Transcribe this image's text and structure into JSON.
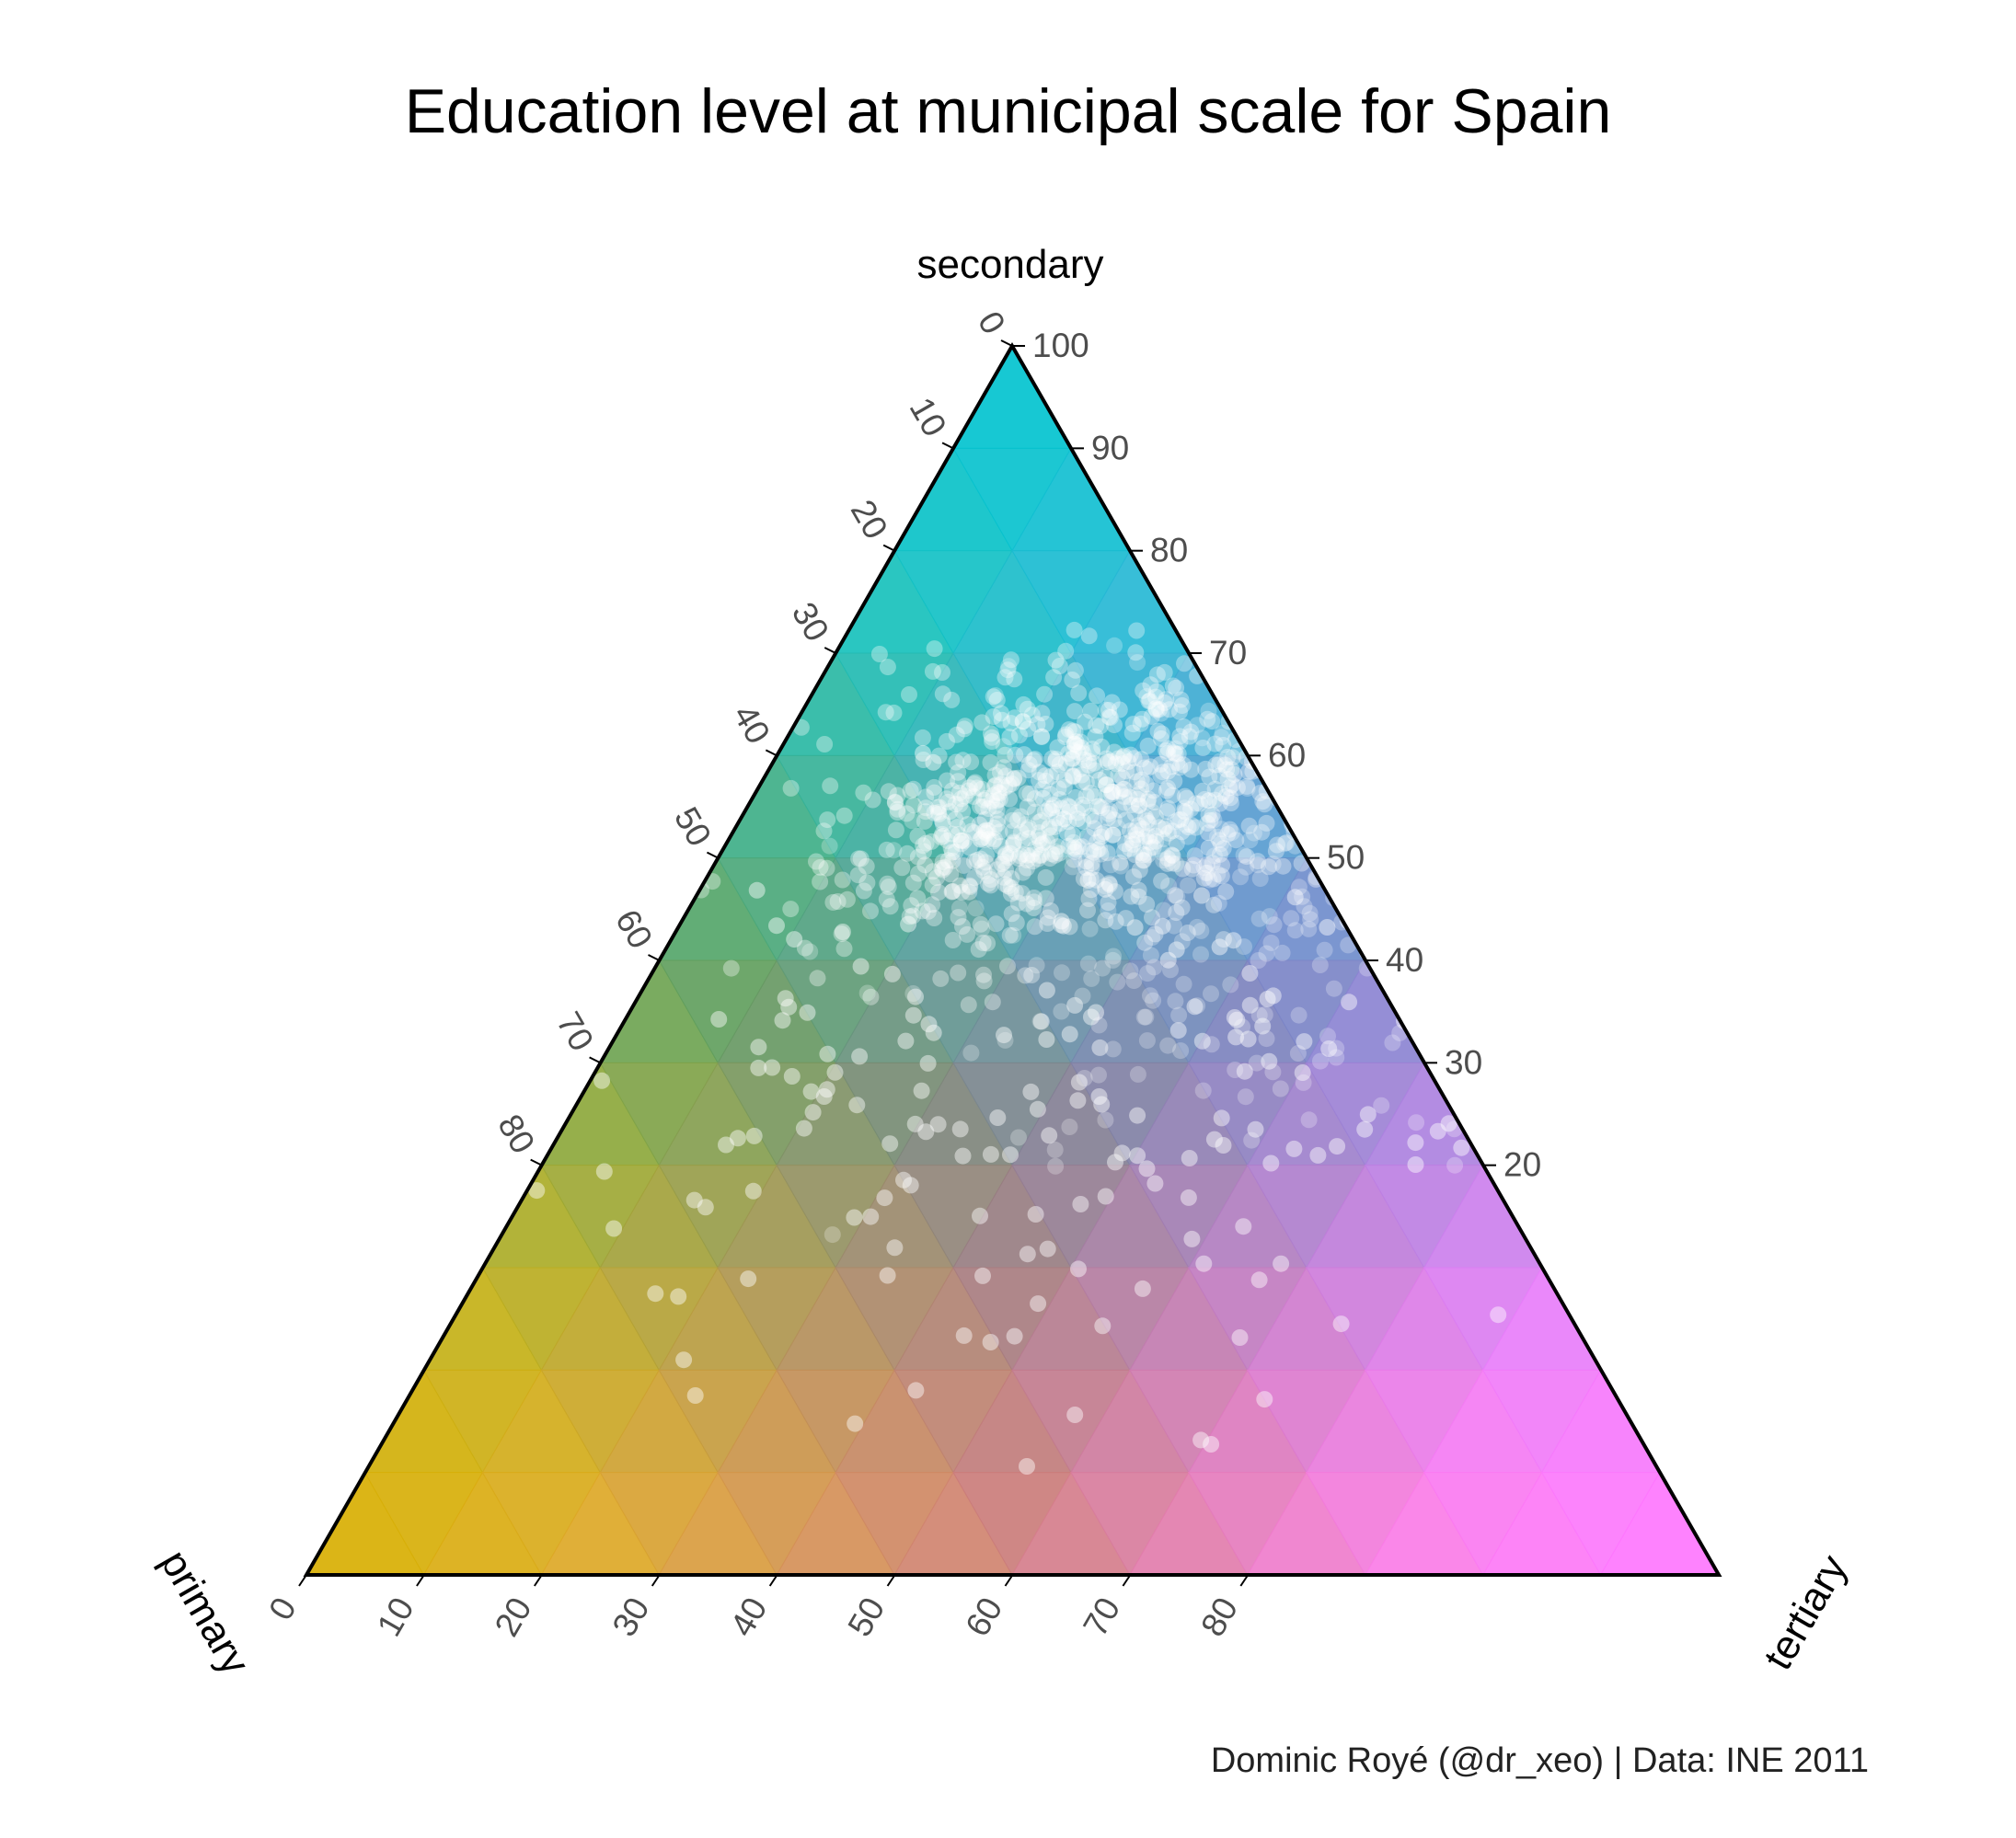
{
  "title": "Education level at municipal scale for Spain",
  "caption": "Dominic Royé (@dr_xeo) | Data: INE 2011",
  "chart_data": {
    "type": "ternary",
    "title": "Education level at municipal scale for Spain",
    "axes": {
      "top": {
        "label": "secondary",
        "range": [
          0,
          100
        ]
      },
      "left": {
        "label": "primary",
        "range": [
          0,
          85
        ]
      },
      "right": {
        "label": "tertiary",
        "range": [
          0,
          85
        ]
      }
    },
    "ticks": {
      "left_edge": [
        "0",
        "10",
        "20",
        "30",
        "40",
        "50",
        "60",
        "70",
        "80"
      ],
      "right_edge": [
        "100",
        "90",
        "80",
        "70",
        "60",
        "50",
        "40",
        "30",
        "20"
      ],
      "bottom_edge": [
        "0",
        "10",
        "20",
        "30",
        "40",
        "50",
        "60",
        "70",
        "80"
      ]
    },
    "background_colors": {
      "secondary": "#00c4cf",
      "primary": "#d8b000",
      "tertiary": "#ff77ff",
      "mixed_center": "#8a7a72"
    },
    "point_color": "#ffffff",
    "grid": false,
    "legend": "none",
    "points_note_count": 8116
  }
}
